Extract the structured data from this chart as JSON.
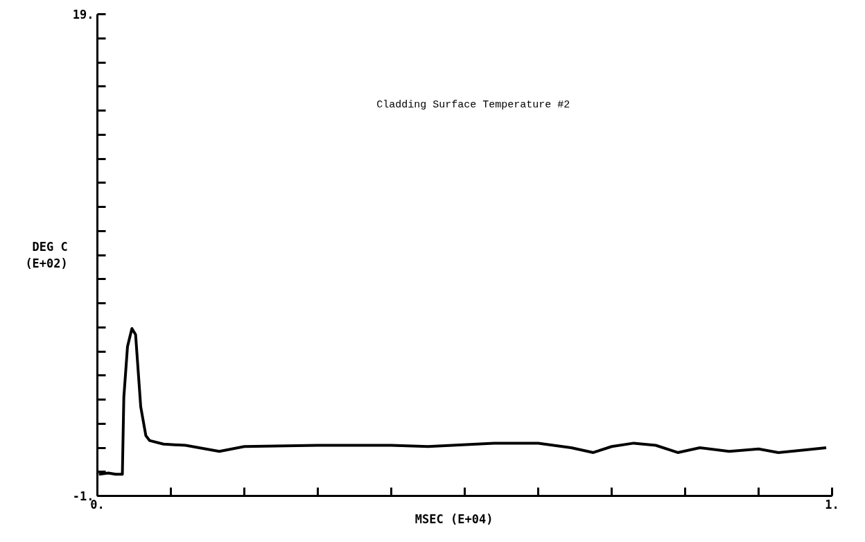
{
  "chart_data": {
    "type": "line",
    "ylabel": "DEG C\n(E+02)",
    "xlabel": "MSEC    (E+04)",
    "annotations": [
      "Cladding Surface Temperature  #2"
    ],
    "x": [
      0.002,
      0.015,
      0.025,
      0.034,
      0.036,
      0.041,
      0.047,
      0.052,
      0.059,
      0.066,
      0.071,
      0.09,
      0.12,
      0.166,
      0.2,
      0.3,
      0.4,
      0.45,
      0.54,
      0.6,
      0.645,
      0.675,
      0.7,
      0.73,
      0.76,
      0.79,
      0.82,
      0.86,
      0.9,
      0.927,
      0.96,
      0.992
    ],
    "series": [
      {
        "color": "#000000",
        "values": [
          -0.1,
          -0.05,
          -0.1,
          -0.1,
          3.1,
          5.2,
          5.95,
          5.7,
          2.7,
          1.5,
          1.3,
          1.15,
          1.1,
          0.85,
          1.05,
          1.1,
          1.1,
          1.05,
          1.19,
          1.19,
          1.0,
          0.8,
          1.05,
          1.19,
          1.1,
          0.8,
          1.0,
          0.85,
          0.95,
          0.8,
          0.9,
          1.0
        ]
      }
    ],
    "xlim": [
      0,
      1
    ],
    "ylim": [
      -1,
      19
    ],
    "xticks": [
      {
        "value": 0,
        "label": "0."
      },
      {
        "value": 0.1,
        "label": null
      },
      {
        "value": 0.2,
        "label": null
      },
      {
        "value": 0.3,
        "label": null
      },
      {
        "value": 0.4,
        "label": null
      },
      {
        "value": 0.5,
        "label": null
      },
      {
        "value": 0.6,
        "label": null
      },
      {
        "value": 0.7,
        "label": null
      },
      {
        "value": 0.8,
        "label": null
      },
      {
        "value": 0.9,
        "label": null
      },
      {
        "value": 1,
        "label": "1."
      }
    ],
    "yticks": [
      {
        "value": -1,
        "label": "-1."
      },
      {
        "value": 0,
        "label": null
      },
      {
        "value": 1,
        "label": null
      },
      {
        "value": 2,
        "label": null
      },
      {
        "value": 3,
        "label": null
      },
      {
        "value": 4,
        "label": null
      },
      {
        "value": 5,
        "label": null
      },
      {
        "value": 6,
        "label": null
      },
      {
        "value": 7,
        "label": null
      },
      {
        "value": 8,
        "label": null
      },
      {
        "value": 9,
        "label": null
      },
      {
        "value": 10,
        "label": null
      },
      {
        "value": 11,
        "label": null
      },
      {
        "value": 12,
        "label": null
      },
      {
        "value": 13,
        "label": null
      },
      {
        "value": 14,
        "label": null
      },
      {
        "value": 15,
        "label": null
      },
      {
        "value": 16,
        "label": null
      },
      {
        "value": 17,
        "label": null
      },
      {
        "value": 18,
        "label": null
      },
      {
        "value": 19,
        "label": "19."
      }
    ],
    "grid": false,
    "marker": "none",
    "line_style": "solid"
  }
}
